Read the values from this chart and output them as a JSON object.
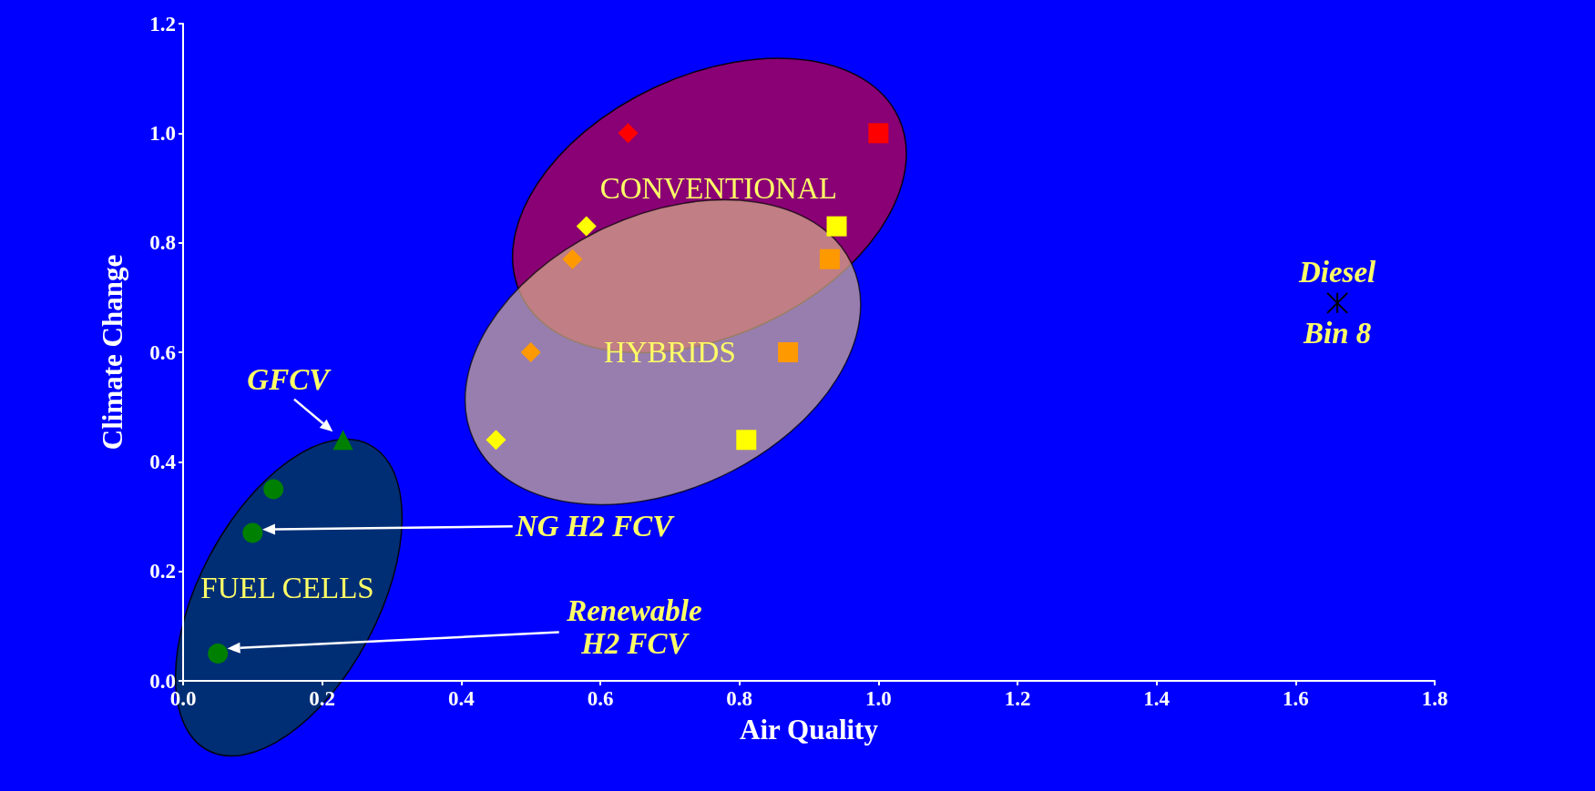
{
  "chart_data": {
    "type": "scatter",
    "xlabel": "Air Quality",
    "ylabel": "Climate Change",
    "xlim": [
      0,
      1.8
    ],
    "ylim": [
      0,
      1.2
    ],
    "xticks": [
      {
        "value": 0,
        "label": "0.0"
      },
      {
        "value": 0.2,
        "label": "0.2"
      },
      {
        "value": 0.4,
        "label": "0.4"
      },
      {
        "value": 0.6,
        "label": "0.6"
      },
      {
        "value": 0.8,
        "label": "0.8"
      },
      {
        "value": 1,
        "label": "1.0"
      },
      {
        "value": 1.2,
        "label": "1.2"
      },
      {
        "value": 1.4,
        "label": "1.4"
      },
      {
        "value": 1.6,
        "label": "1.6"
      },
      {
        "value": 1.8,
        "label": "1.8"
      }
    ],
    "yticks": [
      {
        "value": 0,
        "label": "0.0"
      },
      {
        "value": 0.2,
        "label": "0.2"
      },
      {
        "value": 0.4,
        "label": "0.4"
      },
      {
        "value": 0.6,
        "label": "0.6"
      },
      {
        "value": 0.8,
        "label": "0.8"
      },
      {
        "value": 1,
        "label": "1.0"
      },
      {
        "value": 1.2,
        "label": "1.2"
      }
    ],
    "grid": false,
    "series": [
      {
        "color": "#ff0000",
        "marker": "diamond",
        "x": [
          0.64
        ],
        "values": [
          1.0
        ]
      },
      {
        "color": "#ff0000",
        "marker": "square",
        "x": [
          1.0
        ],
        "values": [
          1.0
        ]
      },
      {
        "color": "#ffff00",
        "marker": "diamond",
        "x": [
          0.58,
          0.45
        ],
        "values": [
          0.83,
          0.44
        ]
      },
      {
        "color": "#ffff00",
        "marker": "square",
        "x": [
          0.94,
          0.81
        ],
        "values": [
          0.83,
          0.44
        ]
      },
      {
        "color": "#ff9900",
        "marker": "diamond",
        "x": [
          0.56,
          0.5
        ],
        "values": [
          0.77,
          0.6
        ]
      },
      {
        "color": "#ff9900",
        "marker": "square",
        "x": [
          0.93,
          0.87
        ],
        "values": [
          0.77,
          0.6
        ]
      },
      {
        "color": "#008000",
        "marker": "triangle",
        "x": [
          0.23
        ],
        "values": [
          0.44
        ]
      },
      {
        "color": "#008000",
        "marker": "circle",
        "x": [
          0.13,
          0.1,
          0.05
        ],
        "values": [
          0.35,
          0.27,
          0.05
        ]
      },
      {
        "color": "#000000",
        "marker": "cross",
        "x": [
          1.66
        ],
        "values": [
          0.69
        ]
      }
    ],
    "annotations": [
      "CONVENTIONAL",
      "HYBRIDS",
      "FUEL CELLS",
      {
        "text": "GFCV",
        "x": 0.23,
        "y": 0.44
      },
      "NG H2 FCV",
      "Renewable\nH2 FCV",
      {
        "text": "Diesel\nBin 8",
        "x": 1.66,
        "y": 0.69
      }
    ]
  }
}
